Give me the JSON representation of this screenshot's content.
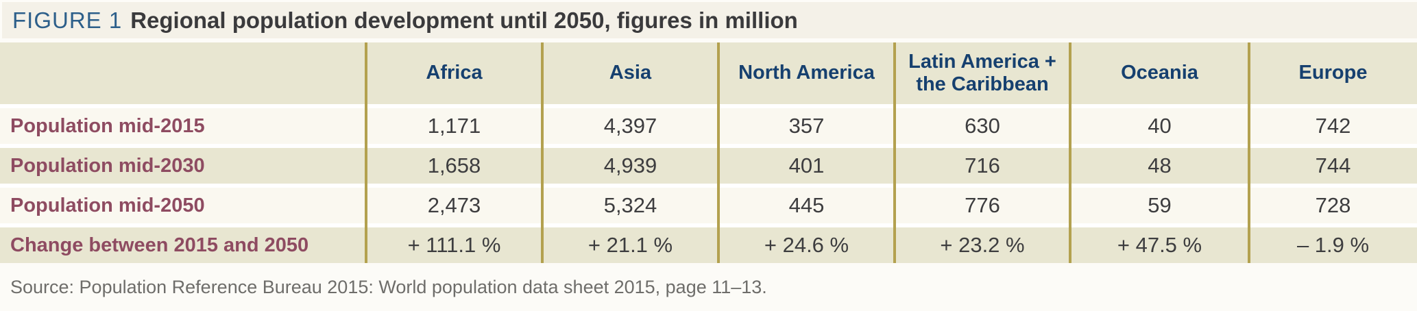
{
  "title": {
    "figure_label": "FIGURE 1",
    "text": "Regional population development until 2050, figures in million"
  },
  "table": {
    "columns": [
      "Africa",
      "Asia",
      "North America",
      "Latin America + the Caribbean",
      "Oceania",
      "Europe"
    ],
    "rows": [
      {
        "label": "Population mid-2015",
        "values": [
          "1,171",
          "4,397",
          "357",
          "630",
          "40",
          "742"
        ]
      },
      {
        "label": "Population mid-2030",
        "values": [
          "1,658",
          "4,939",
          "401",
          "716",
          "48",
          "744"
        ]
      },
      {
        "label": "Population mid-2050",
        "values": [
          "2,473",
          "5,324",
          "445",
          "776",
          "59",
          "728"
        ]
      },
      {
        "label": "Change between 2015 and 2050",
        "values": [
          "+ 111.1 %",
          "+ 21.1 %",
          "+ 24.6 %",
          "+ 23.2 %",
          "+ 47.5 %",
          "– 1.9 %"
        ]
      }
    ]
  },
  "source": "Source: Population Reference Bureau 2015: World population data sheet 2015, page 11–13.",
  "colors": {
    "title_band_bg": "#f4f1e8",
    "figure_label_blue": "#2d5f8a",
    "title_text": "#3a3a3c",
    "header_bg": "#e8e6d1",
    "header_text_navy": "#16406f",
    "row_light_bg": "#faf8f0",
    "row_shade_bg": "#e8e6d1",
    "row_label_maroon": "#8e4b61",
    "value_text": "#3d3d3f",
    "divider_gold": "#b3a14f",
    "source_text": "#6e6d6a"
  },
  "chart_data": {
    "type": "table",
    "title": "FIGURE 1 Regional population development until 2050, figures in million",
    "categories": [
      "Africa",
      "Asia",
      "North America",
      "Latin America + the Caribbean",
      "Oceania",
      "Europe"
    ],
    "series": [
      {
        "name": "Population mid-2015",
        "values": [
          1171,
          4397,
          357,
          630,
          40,
          742
        ]
      },
      {
        "name": "Population mid-2030",
        "values": [
          1658,
          4939,
          401,
          716,
          48,
          744
        ]
      },
      {
        "name": "Population mid-2050",
        "values": [
          2473,
          5324,
          445,
          776,
          59,
          728
        ]
      },
      {
        "name": "Change between 2015 and 2050 (%)",
        "values": [
          111.1,
          21.1,
          24.6,
          23.2,
          47.5,
          -1.9
        ]
      }
    ],
    "source": "Population Reference Bureau 2015: World population data sheet 2015, page 11–13."
  }
}
